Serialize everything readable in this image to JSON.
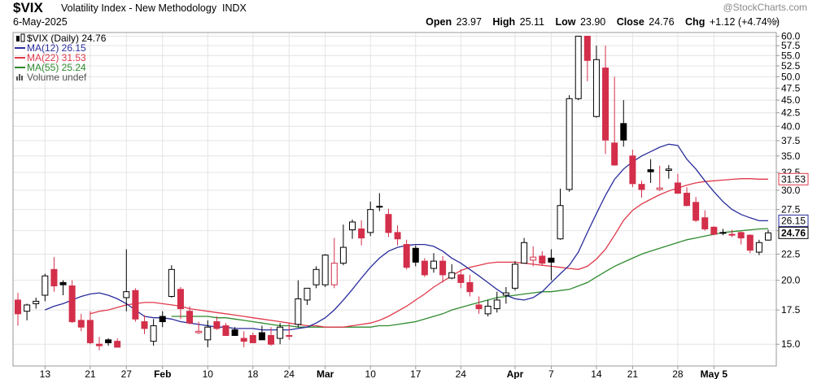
{
  "header": {
    "symbol": "$VIX",
    "description": "Volatility Index - New Methodology",
    "exchange": "INDX",
    "date": "6-May-2025",
    "watermark": "@StockCharts.com",
    "open_label": "Open",
    "open": "23.97",
    "high_label": "High",
    "high": "25.11",
    "low_label": "Low",
    "low": "23.90",
    "close_label": "Close",
    "close": "24.76",
    "chg_label": "Chg",
    "chg": "+1.12 (+4.74%)",
    "close_icon": "close-icon"
  },
  "legend": [
    {
      "text": "$VIX (Daily) 24.76",
      "color": "#000000",
      "icon": "candlestick-icon"
    },
    {
      "text": "MA(12) 26.15",
      "color": "#2a2d9c",
      "icon": "line-icon"
    },
    {
      "text": "MA(22) 31.53",
      "color": "#e0394a",
      "icon": "line-icon"
    },
    {
      "text": "MA(55) 25.24",
      "color": "#2e8b2e",
      "icon": "line-icon"
    },
    {
      "text": "Volume undef",
      "color": "#555555",
      "icon": "volume-bars-icon"
    }
  ],
  "chart_data": {
    "type": "candlestick",
    "y_axis": {
      "min": 13.6,
      "max": 61.0,
      "scale": "log",
      "side": "right",
      "ticks": [
        "15.0",
        "17.5",
        "20.0",
        "22.5",
        "25.0",
        "27.5",
        "30.0",
        "32.5",
        "35.0",
        "37.5",
        "40.0",
        "42.5",
        "45.0",
        "47.5",
        "50.0",
        "52.5",
        "55.0",
        "57.5",
        "60.0"
      ]
    },
    "x_ticks": [
      {
        "label": "13",
        "bold": false,
        "i": 3
      },
      {
        "label": "21",
        "bold": false,
        "i": 8
      },
      {
        "label": "27",
        "bold": false,
        "i": 12
      },
      {
        "label": "Feb",
        "bold": true,
        "i": 16
      },
      {
        "label": "10",
        "bold": false,
        "i": 21
      },
      {
        "label": "18",
        "bold": false,
        "i": 26
      },
      {
        "label": "24",
        "bold": false,
        "i": 30
      },
      {
        "label": "Mar",
        "bold": true,
        "i": 34
      },
      {
        "label": "10",
        "bold": false,
        "i": 39
      },
      {
        "label": "17",
        "bold": false,
        "i": 44
      },
      {
        "label": "24",
        "bold": false,
        "i": 49
      },
      {
        "label": "Apr",
        "bold": true,
        "i": 55
      },
      {
        "label": "7",
        "bold": false,
        "i": 59
      },
      {
        "label": "14",
        "bold": false,
        "i": 64
      },
      {
        "label": "21",
        "bold": false,
        "i": 68
      },
      {
        "label": "28",
        "bold": false,
        "i": 73
      },
      {
        "label": "May 5",
        "bold": true,
        "i": 77
      }
    ],
    "candles": [
      [
        18.3,
        18.9,
        16.3,
        17.2
      ],
      [
        17.4,
        18.0,
        16.7,
        17.9
      ],
      [
        18.0,
        18.5,
        17.6,
        18.2
      ],
      [
        18.7,
        20.6,
        18.2,
        20.4
      ],
      [
        21.0,
        22.2,
        19.0,
        19.5
      ],
      [
        19.8,
        20.0,
        18.7,
        19.6
      ],
      [
        19.5,
        20.0,
        16.5,
        16.6
      ],
      [
        16.7,
        17.2,
        15.9,
        16.2
      ],
      [
        16.7,
        17.4,
        15.0,
        15.1
      ],
      [
        15.0,
        15.5,
        14.6,
        14.9
      ],
      [
        15.3,
        15.4,
        14.9,
        15.1
      ],
      [
        15.2,
        15.4,
        14.8,
        14.8
      ],
      [
        18.5,
        23.0,
        17.4,
        19.0
      ],
      [
        19.1,
        19.3,
        16.6,
        16.8
      ],
      [
        16.6,
        17.1,
        15.7,
        16.1
      ],
      [
        15.2,
        16.8,
        14.9,
        16.3
      ],
      [
        17.0,
        17.4,
        16.2,
        16.6
      ],
      [
        18.6,
        21.4,
        18.5,
        21.0
      ],
      [
        19.2,
        19.4,
        16.8,
        17.6
      ],
      [
        17.4,
        17.8,
        16.4,
        16.5
      ],
      [
        15.8,
        16.6,
        15.7,
        15.9
      ],
      [
        15.3,
        16.7,
        14.8,
        16.2
      ],
      [
        16.6,
        17.0,
        16.0,
        16.1
      ],
      [
        16.3,
        16.5,
        15.6,
        15.6
      ],
      [
        16.0,
        16.2,
        15.6,
        15.6
      ],
      [
        15.4,
        15.9,
        14.8,
        15.2
      ],
      [
        15.6,
        15.8,
        15.1,
        15.1
      ],
      [
        15.8,
        16.3,
        15.3,
        15.3
      ],
      [
        15.6,
        16.2,
        14.9,
        15.0
      ],
      [
        15.4,
        16.5,
        15.0,
        16.2
      ],
      [
        15.6,
        16.5,
        15.3,
        15.6
      ],
      [
        16.4,
        20.0,
        16.2,
        18.4
      ],
      [
        18.3,
        19.2,
        17.9,
        19.3
      ],
      [
        19.6,
        21.3,
        19.3,
        21.0
      ],
      [
        19.6,
        22.5,
        19.4,
        22.4
      ],
      [
        19.6,
        24.2,
        19.3,
        21.6
      ],
      [
        21.6,
        25.7,
        21.4,
        23.2
      ],
      [
        25.1,
        26.3,
        24.1,
        26.0
      ],
      [
        25.2,
        26.2,
        23.4,
        24.2
      ],
      [
        24.8,
        28.5,
        24.4,
        27.5
      ],
      [
        27.8,
        29.6,
        27.3,
        27.9
      ],
      [
        26.9,
        27.6,
        24.3,
        24.8
      ],
      [
        24.8,
        25.6,
        23.4,
        24.1
      ],
      [
        23.5,
        24.0,
        21.0,
        21.2
      ],
      [
        23.1,
        23.4,
        21.3,
        21.7
      ],
      [
        21.8,
        22.1,
        20.3,
        20.5
      ],
      [
        21.1,
        22.6,
        20.7,
        21.8
      ],
      [
        21.8,
        22.3,
        19.8,
        20.5
      ],
      [
        20.2,
        21.5,
        20.1,
        20.7
      ],
      [
        20.5,
        21.0,
        19.3,
        19.8
      ],
      [
        19.8,
        20.5,
        18.6,
        19.0
      ],
      [
        17.9,
        18.6,
        17.2,
        17.6
      ],
      [
        17.2,
        18.3,
        17.0,
        17.8
      ],
      [
        17.6,
        19.0,
        17.3,
        18.3
      ],
      [
        18.7,
        19.4,
        18.0,
        18.9
      ],
      [
        19.3,
        21.8,
        19.1,
        21.5
      ],
      [
        21.6,
        24.2,
        21.6,
        23.7
      ],
      [
        21.9,
        23.3,
        21.3,
        22.2
      ],
      [
        22.3,
        22.8,
        21.4,
        21.6
      ],
      [
        22.1,
        23.0,
        20.0,
        21.7
      ],
      [
        24.1,
        30.2,
        24.0,
        28.0
      ],
      [
        30.1,
        46.0,
        29.8,
        45.3
      ],
      [
        45.3,
        60.1,
        45.0,
        60.0
      ],
      [
        60.0,
        60.0,
        49.0,
        53.8
      ],
      [
        41.8,
        57.5,
        41.6,
        54.0
      ],
      [
        52.0,
        57.5,
        35.3,
        37.6
      ],
      [
        37.1,
        50.0,
        33.5,
        33.6
      ],
      [
        40.5,
        45.0,
        36.5,
        37.6
      ],
      [
        35.0,
        36.0,
        30.4,
        30.9
      ],
      [
        30.8,
        31.3,
        29.0,
        30.1
      ],
      [
        32.9,
        34.5,
        31.0,
        32.6
      ],
      [
        30.1,
        33.5,
        29.9,
        30.3
      ],
      [
        32.8,
        33.6,
        31.6,
        33.0
      ],
      [
        31.0,
        32.3,
        29.5,
        29.6
      ],
      [
        29.6,
        30.4,
        27.9,
        28.0
      ],
      [
        28.4,
        29.1,
        26.0,
        26.2
      ],
      [
        26.5,
        27.4,
        25.0,
        25.2
      ],
      [
        25.4,
        25.5,
        24.5,
        24.6
      ],
      [
        24.8,
        25.2,
        24.5,
        24.8
      ],
      [
        24.6,
        25.1,
        24.3,
        24.5
      ],
      [
        24.8,
        24.9,
        23.5,
        24.2
      ],
      [
        24.5,
        24.6,
        22.6,
        22.9
      ],
      [
        22.7,
        24.0,
        22.4,
        23.7
      ],
      [
        23.97,
        25.11,
        23.9,
        24.76
      ]
    ],
    "ma12": [
      17.5,
      17.8,
      18.0,
      18.3,
      18.6,
      18.8,
      18.9,
      18.7,
      18.4,
      18.0,
      17.5,
      17.0,
      16.9,
      16.9,
      16.8,
      16.6,
      16.5,
      16.4,
      16.3,
      16.2,
      16.2,
      16.1,
      16.1,
      16.1,
      16.0,
      16.0,
      16.0,
      16.0,
      16.1,
      16.2,
      16.5,
      16.9,
      17.5,
      18.3,
      19.2,
      20.2,
      21.2,
      22.1,
      22.8,
      23.2,
      23.4,
      23.5,
      23.5,
      23.3,
      22.8,
      22.1,
      21.6,
      21.0,
      20.4,
      19.8,
      19.2,
      18.7,
      18.4,
      18.3,
      18.5,
      19.0,
      19.8,
      20.6,
      21.4,
      22.7,
      24.8,
      27.0,
      29.3,
      31.5,
      33.0,
      34.1,
      35.0,
      35.7,
      36.4,
      36.9,
      36.7,
      34.5,
      33.0,
      31.3,
      29.8,
      28.5,
      27.5,
      26.9,
      26.5,
      26.15,
      26.15
    ],
    "ma22": [
      17.2,
      17.4,
      17.5,
      17.7,
      17.9,
      18.0,
      18.1,
      18.1,
      18.0,
      17.9,
      17.8,
      17.6,
      17.5,
      17.4,
      17.3,
      17.2,
      17.1,
      17.0,
      16.9,
      16.8,
      16.7,
      16.6,
      16.5,
      16.4,
      16.3,
      16.3,
      16.2,
      16.2,
      16.2,
      16.3,
      16.4,
      16.5,
      16.7,
      17.0,
      17.4,
      17.8,
      18.3,
      18.8,
      19.4,
      19.9,
      20.4,
      20.9,
      21.2,
      21.4,
      21.6,
      21.7,
      21.7,
      21.7,
      21.6,
      21.5,
      21.4,
      21.3,
      21.2,
      21.1,
      21.0,
      21.3,
      22.0,
      23.0,
      24.5,
      26.2,
      27.4,
      28.2,
      28.8,
      29.4,
      29.9,
      30.3,
      30.7,
      31.0,
      31.2,
      31.3,
      31.4,
      31.5,
      31.6,
      31.6,
      31.53,
      31.53
    ],
    "ma55": [
      17.0,
      17.0,
      17.0,
      17.0,
      17.0,
      16.9,
      16.9,
      16.8,
      16.7,
      16.6,
      16.5,
      16.4,
      16.3,
      16.3,
      16.2,
      16.2,
      16.2,
      16.2,
      16.2,
      16.2,
      16.2,
      16.2,
      16.2,
      16.3,
      16.3,
      16.4,
      16.5,
      16.6,
      16.8,
      17.0,
      17.2,
      17.5,
      17.7,
      17.9,
      18.1,
      18.3,
      18.5,
      18.6,
      18.7,
      18.8,
      18.9,
      19.0,
      19.0,
      19.1,
      19.2,
      19.5,
      19.8,
      20.3,
      20.8,
      21.3,
      21.7,
      22.1,
      22.5,
      22.8,
      23.1,
      23.4,
      23.7,
      24.0,
      24.2,
      24.4,
      24.6,
      24.8,
      24.9,
      25.0,
      25.1,
      25.2,
      25.24
    ],
    "axis_badges": [
      {
        "label": "31.53",
        "value": 31.53,
        "color": "#e0394a"
      },
      {
        "label": "26.15",
        "value": 26.15,
        "color": "#2a2d9c"
      },
      {
        "label": "24.76",
        "value": 24.76,
        "color": "#000000"
      }
    ]
  }
}
